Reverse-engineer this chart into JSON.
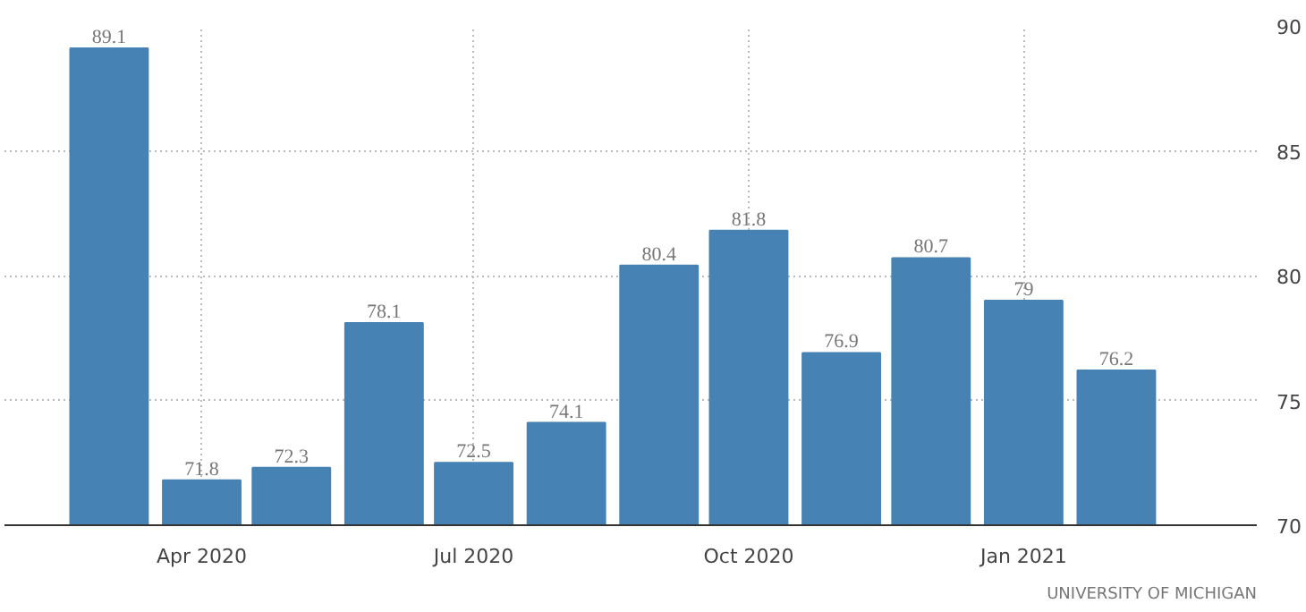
{
  "chart_data": {
    "type": "bar",
    "x": [
      "2020-03",
      "2020-04",
      "2020-05",
      "2020-06",
      "2020-07",
      "2020-08",
      "2020-09",
      "2020-10",
      "2020-11",
      "2020-12",
      "2021-01",
      "2021-02"
    ],
    "values": [
      89.1,
      71.8,
      72.3,
      78.1,
      72.5,
      74.1,
      80.4,
      81.8,
      76.9,
      80.7,
      79,
      76.2
    ],
    "value_labels": [
      "89.1",
      "71.8",
      "72.3",
      "78.1",
      "72.5",
      "74.1",
      "80.4",
      "81.8",
      "76.9",
      "80.7",
      "79",
      "76.2"
    ],
    "color": "#4682b4",
    "xlim": [
      "2020-01-26",
      "2021-03-20"
    ],
    "xticks": [
      {
        "value": "2020-04",
        "label": "Apr 2020"
      },
      {
        "value": "2020-07",
        "label": "Jul 2020"
      },
      {
        "value": "2020-10",
        "label": "Oct 2020"
      },
      {
        "value": "2021-01",
        "label": "Jan 2021"
      }
    ],
    "ylim": [
      70,
      90
    ],
    "yticks": [
      70,
      75,
      80,
      85,
      90
    ],
    "grid": true,
    "annotations": [
      "UNIVERSITY OF MICHIGAN"
    ]
  }
}
